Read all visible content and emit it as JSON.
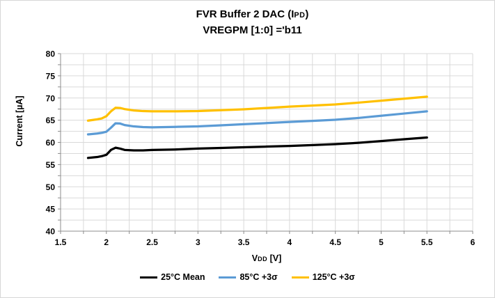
{
  "window": {
    "background": "#FFFFFF",
    "border_color": "#D7D7D7"
  },
  "title": {
    "line1_parts": [
      "FVR Buffer 2 DAC (I",
      "PD",
      ")"
    ],
    "line2": "VREGPM [1:0] ='b11"
  },
  "axes": {
    "x_label_parts": [
      "V",
      "DD",
      " [V]"
    ],
    "y_label": "Current [µA]"
  },
  "legend": {
    "position": "bottom",
    "items": [
      {
        "label": "25°C Mean",
        "color": "#000000"
      },
      {
        "label": "85°C +3σ",
        "color": "#5B9BD5"
      },
      {
        "label": "125°C +3σ",
        "color": "#FFC000"
      }
    ]
  },
  "chart_data": {
    "type": "line",
    "title": "FVR Buffer 2 DAC (IPD)  VREGPM [1:0] ='b11",
    "xlabel": "VDD [V]",
    "ylabel": "Current [µA]",
    "xlim": [
      1.5,
      6
    ],
    "ylim": [
      40,
      80
    ],
    "x_ticks": [
      1.5,
      2,
      2.5,
      3,
      3.5,
      4,
      4.5,
      5,
      5.5,
      6
    ],
    "x_tick_labels": [
      "1.5",
      "2",
      "2.5",
      "3",
      "3.5",
      "4",
      "4.5",
      "5",
      "5.5",
      "6"
    ],
    "y_ticks": [
      40,
      45,
      50,
      55,
      60,
      65,
      70,
      75,
      80
    ],
    "y_tick_labels": [
      "40",
      "45",
      "50",
      "55",
      "60",
      "65",
      "70",
      "75",
      "80"
    ],
    "x_minor_step": 0.25,
    "y_minor_step": 2.5,
    "grid": true,
    "grid_color": "#D9D9D9",
    "axis_color": "#8C8C8C",
    "legend_position": "bottom",
    "x": [
      1.8,
      1.9,
      1.95,
      2.0,
      2.05,
      2.1,
      2.15,
      2.2,
      2.3,
      2.4,
      2.5,
      2.75,
      3.0,
      3.25,
      3.5,
      3.75,
      4.0,
      4.25,
      4.5,
      4.75,
      5.0,
      5.25,
      5.5
    ],
    "series": [
      {
        "name": "25°C Mean",
        "color": "#000000",
        "values": [
          56.5,
          56.7,
          56.9,
          57.2,
          58.3,
          58.8,
          58.6,
          58.3,
          58.2,
          58.2,
          58.3,
          58.4,
          58.6,
          58.75,
          58.9,
          59.05,
          59.2,
          59.4,
          59.6,
          59.9,
          60.3,
          60.7,
          61.1
        ]
      },
      {
        "name": "85°C +3σ",
        "color": "#5B9BD5",
        "values": [
          61.8,
          62.0,
          62.15,
          62.4,
          63.3,
          64.3,
          64.25,
          63.9,
          63.6,
          63.45,
          63.4,
          63.5,
          63.6,
          63.85,
          64.1,
          64.35,
          64.6,
          64.85,
          65.1,
          65.5,
          66.0,
          66.5,
          67.0
        ]
      },
      {
        "name": "125°C +3σ",
        "color": "#FFC000",
        "values": [
          64.9,
          65.2,
          65.4,
          65.9,
          67.0,
          67.8,
          67.75,
          67.5,
          67.2,
          67.05,
          67.0,
          67.0,
          67.05,
          67.25,
          67.45,
          67.75,
          68.05,
          68.3,
          68.55,
          68.95,
          69.4,
          69.85,
          70.3
        ]
      }
    ]
  }
}
